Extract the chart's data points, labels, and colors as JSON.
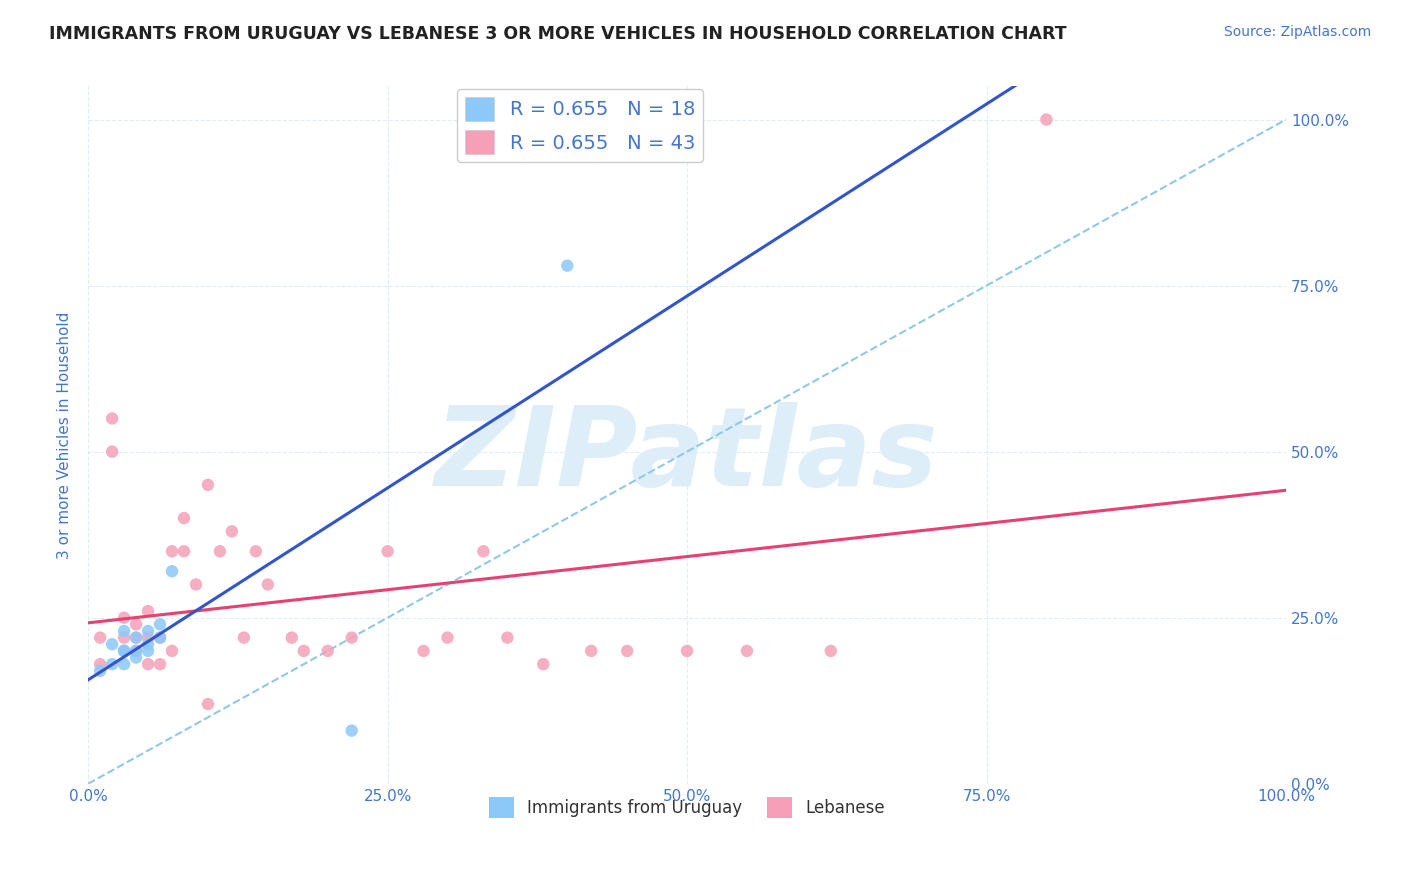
{
  "title": "IMMIGRANTS FROM URUGUAY VS LEBANESE 3 OR MORE VEHICLES IN HOUSEHOLD CORRELATION CHART",
  "source": "Source: ZipAtlas.com",
  "ylabel": "3 or more Vehicles in Household",
  "r_uruguay": 0.655,
  "n_uruguay": 18,
  "r_lebanese": 0.655,
  "n_lebanese": 43,
  "color_uruguay": "#8cc8f8",
  "color_lebanese": "#f5a0b8",
  "line_color_uruguay": "#3355cc",
  "line_color_lebanese": "#e84070",
  "ref_line_color": "#90c8e8",
  "background_color": "#ffffff",
  "grid_color": "#ddeef8",
  "watermark_text": "ZIPatlas",
  "watermark_color": "#ddeef8",
  "title_color": "#222222",
  "source_color": "#4477cc",
  "axis_label_color": "#4477cc",
  "tick_label_color": "#4477cc",
  "legend_r_color": "#4477cc",
  "legend_n_color": "#cc3333",
  "uruguay_points_x": [
    0.01,
    0.02,
    0.02,
    0.03,
    0.03,
    0.03,
    0.03,
    0.04,
    0.04,
    0.04,
    0.05,
    0.05,
    0.05,
    0.06,
    0.06,
    0.07,
    0.4,
    0.22
  ],
  "uruguay_points_y": [
    0.17,
    0.21,
    0.18,
    0.2,
    0.23,
    0.2,
    0.18,
    0.19,
    0.22,
    0.2,
    0.21,
    0.23,
    0.2,
    0.22,
    0.24,
    0.32,
    0.78,
    0.08
  ],
  "lebanese_points_x": [
    0.01,
    0.01,
    0.02,
    0.02,
    0.03,
    0.03,
    0.03,
    0.04,
    0.04,
    0.04,
    0.05,
    0.05,
    0.05,
    0.06,
    0.06,
    0.07,
    0.07,
    0.08,
    0.08,
    0.09,
    0.1,
    0.11,
    0.12,
    0.13,
    0.14,
    0.15,
    0.17,
    0.18,
    0.2,
    0.22,
    0.25,
    0.28,
    0.3,
    0.33,
    0.35,
    0.38,
    0.42,
    0.45,
    0.5,
    0.55,
    0.62,
    0.8,
    0.1
  ],
  "lebanese_points_y": [
    0.18,
    0.22,
    0.55,
    0.5,
    0.2,
    0.22,
    0.25,
    0.2,
    0.22,
    0.24,
    0.18,
    0.22,
    0.26,
    0.18,
    0.22,
    0.2,
    0.35,
    0.35,
    0.4,
    0.3,
    0.45,
    0.35,
    0.38,
    0.22,
    0.35,
    0.3,
    0.22,
    0.2,
    0.2,
    0.22,
    0.35,
    0.2,
    0.22,
    0.35,
    0.22,
    0.18,
    0.2,
    0.2,
    0.2,
    0.2,
    0.2,
    1.0,
    0.12
  ],
  "xlim": [
    0.0,
    1.0
  ],
  "ylim": [
    0.0,
    1.05
  ],
  "xticks": [
    0.0,
    0.25,
    0.5,
    0.75,
    1.0
  ],
  "yticks": [
    0.0,
    0.25,
    0.5,
    0.75,
    1.0
  ],
  "xtick_labels": [
    "0.0%",
    "25.0%",
    "50.0%",
    "75.0%",
    "100.0%"
  ],
  "ytick_labels_right": [
    "0.0%",
    "25.0%",
    "50.0%",
    "75.0%",
    "100.0%"
  ],
  "legend_labels": [
    "Immigrants from Uruguay",
    "Lebanese"
  ]
}
